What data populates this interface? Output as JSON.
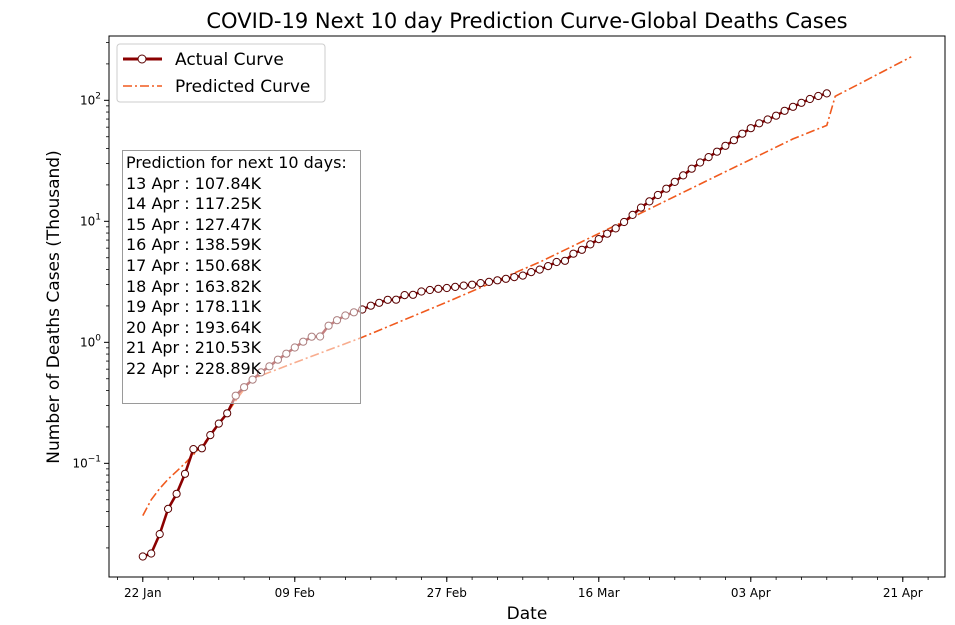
{
  "chart_data": {
    "type": "line",
    "title": "COVID-19 Next 10 day Prediction Curve-Global Deaths Cases",
    "xlabel": "Date",
    "ylabel": "Number of Deaths Cases (Thousand)",
    "yscale": "log",
    "ylim": [
      0.0115,
      340
    ],
    "xlim": [
      "2020-01-18",
      "2020-04-26"
    ],
    "x_ticks": [
      {
        "date": "2020-01-22",
        "label": "22 Jan"
      },
      {
        "date": "2020-02-09",
        "label": "09 Feb"
      },
      {
        "date": "2020-02-27",
        "label": "27 Feb"
      },
      {
        "date": "2020-03-16",
        "label": "16 Mar"
      },
      {
        "date": "2020-04-03",
        "label": "03 Apr"
      },
      {
        "date": "2020-04-21",
        "label": "21 Apr"
      }
    ],
    "y_ticks": [
      {
        "value": 0.1,
        "base": "10",
        "exp": "−1"
      },
      {
        "value": 1,
        "base": "10",
        "exp": "0"
      },
      {
        "value": 10,
        "base": "10",
        "exp": "1"
      },
      {
        "value": 100,
        "base": "10",
        "exp": "2"
      }
    ],
    "legend": {
      "position": "top-left",
      "entries": [
        "Actual Curve",
        "Predicted Curve"
      ]
    },
    "grid": false,
    "series": [
      {
        "name": "Actual Curve",
        "color": "#8b0000",
        "marker": "open-circle",
        "points": [
          [
            "2020-01-22",
            0.017
          ],
          [
            "2020-01-23",
            0.018
          ],
          [
            "2020-01-24",
            0.026
          ],
          [
            "2020-01-25",
            0.042
          ],
          [
            "2020-01-26",
            0.056
          ],
          [
            "2020-01-27",
            0.082
          ],
          [
            "2020-01-28",
            0.131
          ],
          [
            "2020-01-29",
            0.133
          ],
          [
            "2020-01-30",
            0.171
          ],
          [
            "2020-01-31",
            0.213
          ],
          [
            "2020-02-01",
            0.259
          ],
          [
            "2020-02-02",
            0.362
          ],
          [
            "2020-02-03",
            0.426
          ],
          [
            "2020-02-04",
            0.492
          ],
          [
            "2020-02-05",
            0.564
          ],
          [
            "2020-02-06",
            0.634
          ],
          [
            "2020-02-07",
            0.719
          ],
          [
            "2020-02-08",
            0.806
          ],
          [
            "2020-02-09",
            0.906
          ],
          [
            "2020-02-10",
            1.013
          ],
          [
            "2020-02-11",
            1.113
          ],
          [
            "2020-02-12",
            1.118
          ],
          [
            "2020-02-13",
            1.371
          ],
          [
            "2020-02-14",
            1.523
          ],
          [
            "2020-02-15",
            1.666
          ],
          [
            "2020-02-16",
            1.77
          ],
          [
            "2020-02-17",
            1.868
          ],
          [
            "2020-02-18",
            2.007
          ],
          [
            "2020-02-19",
            2.122
          ],
          [
            "2020-02-20",
            2.247
          ],
          [
            "2020-02-21",
            2.251
          ],
          [
            "2020-02-22",
            2.458
          ],
          [
            "2020-02-23",
            2.469
          ],
          [
            "2020-02-24",
            2.629
          ],
          [
            "2020-02-25",
            2.708
          ],
          [
            "2020-02-26",
            2.77
          ],
          [
            "2020-02-27",
            2.814
          ],
          [
            "2020-02-28",
            2.872
          ],
          [
            "2020-02-29",
            2.941
          ],
          [
            "2020-03-01",
            2.996
          ],
          [
            "2020-03-02",
            3.085
          ],
          [
            "2020-03-03",
            3.16
          ],
          [
            "2020-03-04",
            3.254
          ],
          [
            "2020-03-05",
            3.348
          ],
          [
            "2020-03-06",
            3.46
          ],
          [
            "2020-03-07",
            3.558
          ],
          [
            "2020-03-08",
            3.802
          ],
          [
            "2020-03-09",
            3.988
          ],
          [
            "2020-03-10",
            4.262
          ],
          [
            "2020-03-11",
            4.615
          ],
          [
            "2020-03-12",
            4.72
          ],
          [
            "2020-03-13",
            5.404
          ],
          [
            "2020-03-14",
            5.819
          ],
          [
            "2020-03-15",
            6.44
          ],
          [
            "2020-03-16",
            7.126
          ],
          [
            "2020-03-17",
            7.905
          ],
          [
            "2020-03-18",
            8.733
          ],
          [
            "2020-03-19",
            9.867
          ],
          [
            "2020-03-20",
            11.299
          ],
          [
            "2020-03-21",
            12.973
          ],
          [
            "2020-03-22",
            14.623
          ],
          [
            "2020-03-23",
            16.497
          ],
          [
            "2020-03-24",
            18.615
          ],
          [
            "2020-03-25",
            21.181
          ],
          [
            "2020-03-26",
            23.97
          ],
          [
            "2020-03-27",
            27.198
          ],
          [
            "2020-03-28",
            30.652
          ],
          [
            "2020-03-29",
            33.925
          ],
          [
            "2020-03-30",
            37.582
          ],
          [
            "2020-03-31",
            42.107
          ],
          [
            "2020-04-01",
            46.809
          ],
          [
            "2020-04-02",
            52.983
          ],
          [
            "2020-04-03",
            58.787
          ],
          [
            "2020-04-04",
            64.606
          ],
          [
            "2020-04-05",
            69.374
          ],
          [
            "2020-04-06",
            74.565
          ],
          [
            "2020-04-07",
            81.865
          ],
          [
            "2020-04-08",
            88.338
          ],
          [
            "2020-04-09",
            95.455
          ],
          [
            "2020-04-10",
            102.525
          ],
          [
            "2020-04-11",
            108.503
          ],
          [
            "2020-04-12",
            114.091
          ]
        ]
      },
      {
        "name": "Predicted Curve",
        "color": "#f05a1e",
        "style": "dash-dot",
        "points": [
          [
            "2020-01-22",
            0.037
          ],
          [
            "2020-01-23",
            0.05
          ],
          [
            "2020-01-24",
            0.062
          ],
          [
            "2020-01-25",
            0.074
          ],
          [
            "2020-01-26",
            0.086
          ],
          [
            "2020-01-27",
            0.1
          ],
          [
            "2020-01-28",
            0.118
          ],
          [
            "2020-01-29",
            0.14
          ],
          [
            "2020-01-30",
            0.17
          ],
          [
            "2020-01-31",
            0.21
          ],
          [
            "2020-02-01",
            0.26
          ],
          [
            "2020-02-02",
            0.33
          ],
          [
            "2020-02-03",
            0.41
          ],
          [
            "2020-02-04",
            0.5
          ],
          [
            "2020-02-09",
            0.68
          ],
          [
            "2020-02-17",
            1.1
          ],
          [
            "2020-02-27",
            2.15
          ],
          [
            "2020-03-09",
            4.6
          ],
          [
            "2020-03-19",
            10.0
          ],
          [
            "2020-03-29",
            22.0
          ],
          [
            "2020-04-08",
            48.0
          ],
          [
            "2020-04-12",
            62.0
          ],
          [
            "2020-04-13",
            107.84
          ],
          [
            "2020-04-14",
            117.25
          ],
          [
            "2020-04-15",
            127.47
          ],
          [
            "2020-04-16",
            138.59
          ],
          [
            "2020-04-17",
            150.68
          ],
          [
            "2020-04-18",
            163.82
          ],
          [
            "2020-04-19",
            178.11
          ],
          [
            "2020-04-20",
            193.64
          ],
          [
            "2020-04-21",
            210.53
          ],
          [
            "2020-04-22",
            228.89
          ]
        ]
      }
    ],
    "annotation": {
      "heading": "Prediction for next 10 days:",
      "lines": [
        "13 Apr : 107.84K",
        "14 Apr : 117.25K",
        "15 Apr : 127.47K",
        "16 Apr : 138.59K",
        "17 Apr : 150.68K",
        "18 Apr : 163.82K",
        "19 Apr : 178.11K",
        "20 Apr : 193.64K",
        "21 Apr : 210.53K",
        "22 Apr : 228.89K"
      ]
    }
  }
}
